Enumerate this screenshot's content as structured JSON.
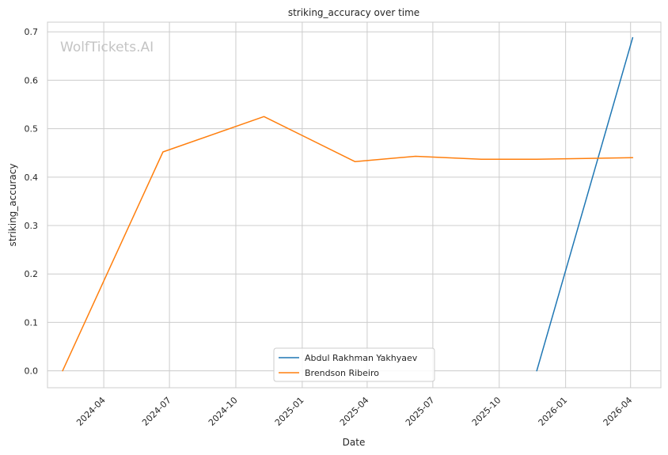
{
  "chart_data": {
    "type": "line",
    "title": "striking_accuracy over time",
    "xlabel": "Date",
    "ylabel": "striking_accuracy",
    "watermark": "WolfTickets.AI",
    "x_ticks": [
      "2024-04",
      "2024-07",
      "2024-10",
      "2025-01",
      "2025-04",
      "2025-07",
      "2025-10",
      "2026-01",
      "2026-04"
    ],
    "y_ticks": [
      "0.0",
      "0.1",
      "0.2",
      "0.3",
      "0.4",
      "0.5",
      "0.6",
      "0.7"
    ],
    "xlim": [
      "2024-01-14",
      "2026-05-13"
    ],
    "ylim": [
      -0.035,
      0.72
    ],
    "grid": true,
    "legend_position": "lower-center",
    "series": [
      {
        "name": "Abdul Rakhman Yakhyaev",
        "color": "#1f77b4",
        "points": [
          {
            "x": "2025-11-22",
            "y": 0.0
          },
          {
            "x": "2026-04-04",
            "y": 0.688
          }
        ]
      },
      {
        "name": "Brendson Ribeiro",
        "color": "#ff7f0e",
        "points": [
          {
            "x": "2024-02-04",
            "y": 0.0
          },
          {
            "x": "2024-06-22",
            "y": 0.452
          },
          {
            "x": "2024-11-09",
            "y": 0.525
          },
          {
            "x": "2025-03-15",
            "y": 0.432
          },
          {
            "x": "2025-06-07",
            "y": 0.443
          },
          {
            "x": "2025-09-06",
            "y": 0.437
          },
          {
            "x": "2025-11-22",
            "y": 0.437
          },
          {
            "x": "2026-04-04",
            "y": 0.44
          }
        ]
      }
    ]
  }
}
